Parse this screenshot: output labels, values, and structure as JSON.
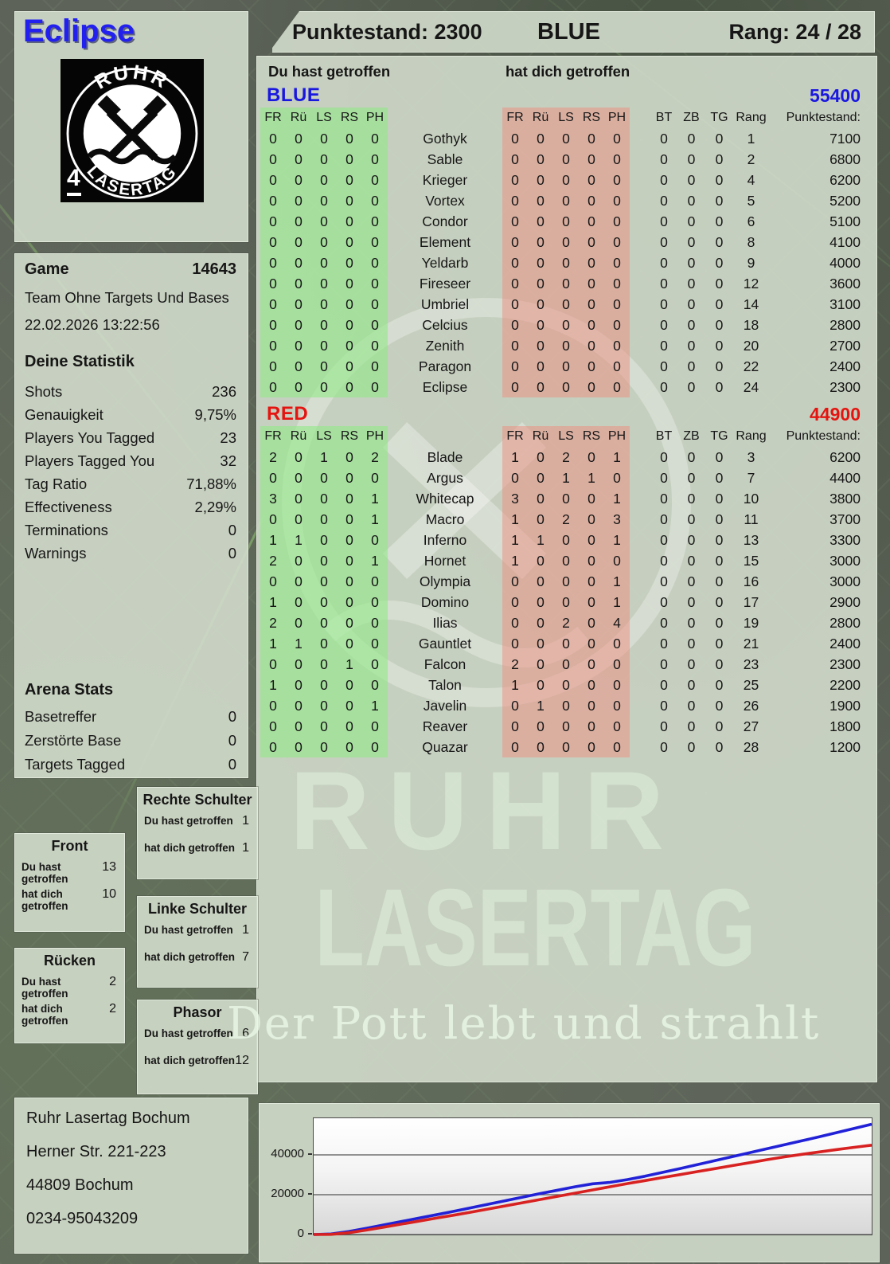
{
  "player": {
    "name": "Eclipse",
    "score": "Punktestand: 2300",
    "team": "BLUE",
    "rank": "Rang: 24 / 28"
  },
  "logo": {
    "arc_top": "RUHR",
    "arc_bottom": "LASERTAG",
    "pack_number": "4"
  },
  "section_labels": {
    "you_hit": "Du hast getroffen",
    "hit_you": "hat dich getroffen"
  },
  "score_table": {
    "hit_cols": [
      "FR",
      "Rü",
      "LS",
      "RS",
      "PH"
    ],
    "extra_cols": [
      "BT",
      "ZB",
      "TG",
      "Rang",
      "Punktestand:"
    ],
    "teams": [
      {
        "label": "BLUE",
        "total": "55400",
        "color": "#1a18e0",
        "rows": [
          {
            "you_hit": [
              0,
              0,
              0,
              0,
              0
            ],
            "player": "Gothyk",
            "hit_you": [
              0,
              0,
              0,
              0,
              0
            ],
            "extra": [
              0,
              0,
              0
            ],
            "rank": 1,
            "score": 7100
          },
          {
            "you_hit": [
              0,
              0,
              0,
              0,
              0
            ],
            "player": "Sable",
            "hit_you": [
              0,
              0,
              0,
              0,
              0
            ],
            "extra": [
              0,
              0,
              0
            ],
            "rank": 2,
            "score": 6800
          },
          {
            "you_hit": [
              0,
              0,
              0,
              0,
              0
            ],
            "player": "Krieger",
            "hit_you": [
              0,
              0,
              0,
              0,
              0
            ],
            "extra": [
              0,
              0,
              0
            ],
            "rank": 4,
            "score": 6200
          },
          {
            "you_hit": [
              0,
              0,
              0,
              0,
              0
            ],
            "player": "Vortex",
            "hit_you": [
              0,
              0,
              0,
              0,
              0
            ],
            "extra": [
              0,
              0,
              0
            ],
            "rank": 5,
            "score": 5200
          },
          {
            "you_hit": [
              0,
              0,
              0,
              0,
              0
            ],
            "player": "Condor",
            "hit_you": [
              0,
              0,
              0,
              0,
              0
            ],
            "extra": [
              0,
              0,
              0
            ],
            "rank": 6,
            "score": 5100
          },
          {
            "you_hit": [
              0,
              0,
              0,
              0,
              0
            ],
            "player": "Element",
            "hit_you": [
              0,
              0,
              0,
              0,
              0
            ],
            "extra": [
              0,
              0,
              0
            ],
            "rank": 8,
            "score": 4100
          },
          {
            "you_hit": [
              0,
              0,
              0,
              0,
              0
            ],
            "player": "Yeldarb",
            "hit_you": [
              0,
              0,
              0,
              0,
              0
            ],
            "extra": [
              0,
              0,
              0
            ],
            "rank": 9,
            "score": 4000
          },
          {
            "you_hit": [
              0,
              0,
              0,
              0,
              0
            ],
            "player": "Fireseer",
            "hit_you": [
              0,
              0,
              0,
              0,
              0
            ],
            "extra": [
              0,
              0,
              0
            ],
            "rank": 12,
            "score": 3600
          },
          {
            "you_hit": [
              0,
              0,
              0,
              0,
              0
            ],
            "player": "Umbriel",
            "hit_you": [
              0,
              0,
              0,
              0,
              0
            ],
            "extra": [
              0,
              0,
              0
            ],
            "rank": 14,
            "score": 3100
          },
          {
            "you_hit": [
              0,
              0,
              0,
              0,
              0
            ],
            "player": "Celcius",
            "hit_you": [
              0,
              0,
              0,
              0,
              0
            ],
            "extra": [
              0,
              0,
              0
            ],
            "rank": 18,
            "score": 2800
          },
          {
            "you_hit": [
              0,
              0,
              0,
              0,
              0
            ],
            "player": "Zenith",
            "hit_you": [
              0,
              0,
              0,
              0,
              0
            ],
            "extra": [
              0,
              0,
              0
            ],
            "rank": 20,
            "score": 2700
          },
          {
            "you_hit": [
              0,
              0,
              0,
              0,
              0
            ],
            "player": "Paragon",
            "hit_you": [
              0,
              0,
              0,
              0,
              0
            ],
            "extra": [
              0,
              0,
              0
            ],
            "rank": 22,
            "score": 2400
          },
          {
            "you_hit": [
              0,
              0,
              0,
              0,
              0
            ],
            "player": "Eclipse",
            "hit_you": [
              0,
              0,
              0,
              0,
              0
            ],
            "extra": [
              0,
              0,
              0
            ],
            "rank": 24,
            "score": 2300
          }
        ]
      },
      {
        "label": "RED",
        "total": "44900",
        "color": "#e41511",
        "rows": [
          {
            "you_hit": [
              2,
              0,
              1,
              0,
              2
            ],
            "player": "Blade",
            "hit_you": [
              1,
              0,
              2,
              0,
              1
            ],
            "extra": [
              0,
              0,
              0
            ],
            "rank": 3,
            "score": 6200
          },
          {
            "you_hit": [
              0,
              0,
              0,
              0,
              0
            ],
            "player": "Argus",
            "hit_you": [
              0,
              0,
              1,
              1,
              0
            ],
            "extra": [
              0,
              0,
              0
            ],
            "rank": 7,
            "score": 4400
          },
          {
            "you_hit": [
              3,
              0,
              0,
              0,
              1
            ],
            "player": "Whitecap",
            "hit_you": [
              3,
              0,
              0,
              0,
              1
            ],
            "extra": [
              0,
              0,
              0
            ],
            "rank": 10,
            "score": 3800
          },
          {
            "you_hit": [
              0,
              0,
              0,
              0,
              1
            ],
            "player": "Macro",
            "hit_you": [
              1,
              0,
              2,
              0,
              3
            ],
            "extra": [
              0,
              0,
              0
            ],
            "rank": 11,
            "score": 3700
          },
          {
            "you_hit": [
              1,
              1,
              0,
              0,
              0
            ],
            "player": "Inferno",
            "hit_you": [
              1,
              1,
              0,
              0,
              1
            ],
            "extra": [
              0,
              0,
              0
            ],
            "rank": 13,
            "score": 3300
          },
          {
            "you_hit": [
              2,
              0,
              0,
              0,
              1
            ],
            "player": "Hornet",
            "hit_you": [
              1,
              0,
              0,
              0,
              0
            ],
            "extra": [
              0,
              0,
              0
            ],
            "rank": 15,
            "score": 3000
          },
          {
            "you_hit": [
              0,
              0,
              0,
              0,
              0
            ],
            "player": "Olympia",
            "hit_you": [
              0,
              0,
              0,
              0,
              1
            ],
            "extra": [
              0,
              0,
              0
            ],
            "rank": 16,
            "score": 3000
          },
          {
            "you_hit": [
              1,
              0,
              0,
              0,
              0
            ],
            "player": "Domino",
            "hit_you": [
              0,
              0,
              0,
              0,
              1
            ],
            "extra": [
              0,
              0,
              0
            ],
            "rank": 17,
            "score": 2900
          },
          {
            "you_hit": [
              2,
              0,
              0,
              0,
              0
            ],
            "player": "Ilias",
            "hit_you": [
              0,
              0,
              2,
              0,
              4
            ],
            "extra": [
              0,
              0,
              0
            ],
            "rank": 19,
            "score": 2800
          },
          {
            "you_hit": [
              1,
              1,
              0,
              0,
              0
            ],
            "player": "Gauntlet",
            "hit_you": [
              0,
              0,
              0,
              0,
              0
            ],
            "extra": [
              0,
              0,
              0
            ],
            "rank": 21,
            "score": 2400
          },
          {
            "you_hit": [
              0,
              0,
              0,
              1,
              0
            ],
            "player": "Falcon",
            "hit_you": [
              2,
              0,
              0,
              0,
              0
            ],
            "extra": [
              0,
              0,
              0
            ],
            "rank": 23,
            "score": 2300
          },
          {
            "you_hit": [
              1,
              0,
              0,
              0,
              0
            ],
            "player": "Talon",
            "hit_you": [
              1,
              0,
              0,
              0,
              0
            ],
            "extra": [
              0,
              0,
              0
            ],
            "rank": 25,
            "score": 2200
          },
          {
            "you_hit": [
              0,
              0,
              0,
              0,
              1
            ],
            "player": "Javelin",
            "hit_you": [
              0,
              1,
              0,
              0,
              0
            ],
            "extra": [
              0,
              0,
              0
            ],
            "rank": 26,
            "score": 1900
          },
          {
            "you_hit": [
              0,
              0,
              0,
              0,
              0
            ],
            "player": "Reaver",
            "hit_you": [
              0,
              0,
              0,
              0,
              0
            ],
            "extra": [
              0,
              0,
              0
            ],
            "rank": 27,
            "score": 1800
          },
          {
            "you_hit": [
              0,
              0,
              0,
              0,
              0
            ],
            "player": "Quazar",
            "hit_you": [
              0,
              0,
              0,
              0,
              0
            ],
            "extra": [
              0,
              0,
              0
            ],
            "rank": 28,
            "score": 1200
          }
        ]
      }
    ]
  },
  "game_info": {
    "label": "Game",
    "number": "14643",
    "mode": "Team Ohne Targets Und Bases",
    "datetime": "22.02.2026 13:22:56"
  },
  "your_stats": {
    "title": "Deine Statistik",
    "rows": [
      {
        "label": "Shots",
        "value": "236"
      },
      {
        "label": "Genauigkeit",
        "value": "9,75%"
      },
      {
        "label": "Players You Tagged",
        "value": "23"
      },
      {
        "label": "Players Tagged You",
        "value": "32"
      },
      {
        "label": "Tag Ratio",
        "value": "71,88%"
      },
      {
        "label": "Effectiveness",
        "value": "2,29%"
      },
      {
        "label": "Terminations",
        "value": "0"
      },
      {
        "label": "Warnings",
        "value": "0"
      }
    ]
  },
  "arena_stats": {
    "title": "Arena Stats",
    "rows": [
      {
        "label": "Basetreffer",
        "value": "0"
      },
      {
        "label": "Zerstörte Base",
        "value": "0"
      },
      {
        "label": "Targets Tagged",
        "value": "0"
      }
    ]
  },
  "body_parts": {
    "you_label": "Du hast getroffen",
    "them_label": "hat dich getroffen",
    "boxes": [
      {
        "title": "Front",
        "you": "13",
        "them": "10"
      },
      {
        "title": "Rücken",
        "you": "2",
        "them": "2"
      },
      {
        "title": "Rechte Schulter",
        "you": "1",
        "them": "1"
      },
      {
        "title": "Linke Schulter",
        "you": "1",
        "them": "7"
      },
      {
        "title": "Phasor",
        "you": "6",
        "them": "12"
      }
    ]
  },
  "venue": {
    "lines": [
      "Ruhr Lasertag Bochum",
      "Herner Str. 221-223",
      "44809 Bochum",
      "0234-95043209"
    ]
  },
  "watermark": {
    "line1": "RUHR",
    "line2": "LASERTAG",
    "tagline": "Der Pott lebt und strahlt"
  },
  "chart_data": {
    "type": "line",
    "title": "",
    "xlabel": "",
    "ylabel": "",
    "yticks": [
      0,
      20000,
      40000
    ],
    "ylim": [
      0,
      58400
    ],
    "grid": true,
    "legend_position": "none",
    "series": [
      {
        "name": "BLUE",
        "color": "#2121d8",
        "values": [
          0,
          300,
          1500,
          3100,
          4800,
          6500,
          8200,
          9900,
          11600,
          13400,
          15200,
          17000,
          18800,
          20600,
          22300,
          24000,
          25500,
          26200,
          27600,
          29300,
          31200,
          33100,
          35100,
          37100,
          39100,
          41100,
          43100,
          45100,
          47100,
          49100,
          51200,
          53300,
          55400
        ]
      },
      {
        "name": "RED",
        "color": "#d82121",
        "values": [
          0,
          100,
          900,
          2200,
          3700,
          5200,
          6700,
          8200,
          9700,
          11200,
          12800,
          14400,
          16000,
          17600,
          19200,
          20800,
          22400,
          24000,
          25600,
          27100,
          28600,
          30100,
          31600,
          33100,
          34600,
          36100,
          37600,
          39000,
          40300,
          41500,
          42700,
          43800,
          44900
        ]
      }
    ]
  }
}
